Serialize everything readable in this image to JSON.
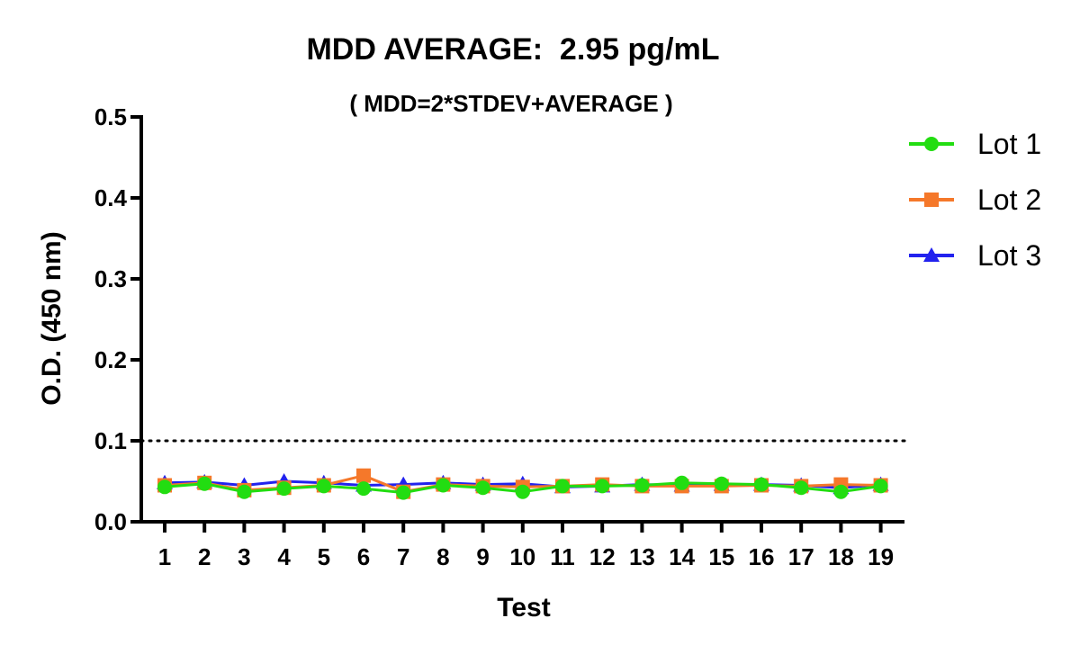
{
  "chart_data": {
    "type": "line",
    "title": "MDD AVERAGE:  2.95 pg/mL",
    "subtitle": "( MDD=2*STDEV+AVERAGE )",
    "xlabel": "Test",
    "ylabel": "O.D. (450 nm)",
    "categories": [
      "1",
      "2",
      "3",
      "4",
      "5",
      "6",
      "7",
      "8",
      "9",
      "10",
      "11",
      "12",
      "13",
      "14",
      "15",
      "16",
      "17",
      "18",
      "19"
    ],
    "ylim": [
      0,
      0.5
    ],
    "yticks": [
      "0.0",
      "0.1",
      "0.2",
      "0.3",
      "0.4",
      "0.5"
    ],
    "reference_line": 0.1,
    "legend_position": "top-right",
    "series": [
      {
        "name": "Lot 1",
        "color": "#22dd11",
        "marker": "circle",
        "values": [
          0.043,
          0.047,
          0.037,
          0.041,
          0.044,
          0.041,
          0.036,
          0.045,
          0.042,
          0.037,
          0.044,
          0.044,
          0.045,
          0.048,
          0.047,
          0.046,
          0.042,
          0.037,
          0.044
        ]
      },
      {
        "name": "Lot 2",
        "color": "#f5782a",
        "marker": "square",
        "values": [
          0.045,
          0.048,
          0.039,
          0.042,
          0.045,
          0.057,
          0.037,
          0.046,
          0.044,
          0.043,
          0.044,
          0.046,
          0.044,
          0.044,
          0.044,
          0.045,
          0.044,
          0.046,
          0.045
        ]
      },
      {
        "name": "Lot 3",
        "color": "#2222ee",
        "marker": "triangle",
        "values": [
          0.048,
          0.049,
          0.045,
          0.05,
          0.048,
          0.045,
          0.046,
          0.048,
          0.046,
          0.047,
          0.043,
          0.044,
          0.046,
          0.045,
          0.046,
          0.046,
          0.045,
          0.042,
          0.046
        ]
      }
    ]
  }
}
